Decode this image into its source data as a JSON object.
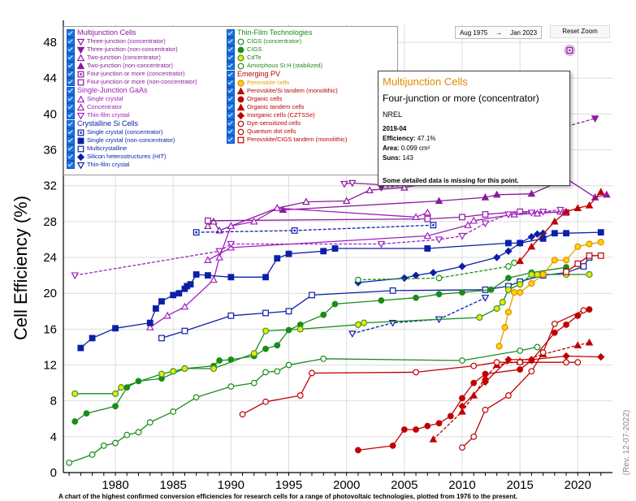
{
  "chart_data": {
    "type": "line",
    "title": "",
    "xlabel": "",
    "ylabel": "Cell Efficiency (%)",
    "xlim": [
      1975.5,
      2023
    ],
    "ylim": [
      0,
      50
    ],
    "x_ticks": [
      1980,
      1985,
      1990,
      1995,
      2000,
      2005,
      2010,
      2015,
      2020
    ],
    "y_ticks": [
      0,
      4,
      8,
      12,
      16,
      20,
      24,
      28,
      32,
      36,
      40,
      44,
      48
    ],
    "grid": true,
    "legend_position": "top-left",
    "caption": "A chart of the highest confirmed conversion efficiencies for research cells for a range of photovoltaic technologies, plotted from 1976 to the present.",
    "revision": "(Rev. 12-07-2022)",
    "controls": {
      "date_from": "Aug 1975",
      "date_arrow": "→",
      "date_to": "Jan 2023",
      "reset_label": "Reset Zoom"
    },
    "tooltip": {
      "group": "Multijunction Cells",
      "series": "Four-junction or more (concentrator)",
      "org": "NREL",
      "date": "2019-04",
      "efficiency_label": "Efficiency:",
      "efficiency": "47.1%",
      "area_label": "Area:",
      "area": "0.099 cm²",
      "suns_label": "Suns:",
      "suns": "143",
      "note": "Some detailed data is missing for this point."
    },
    "legend": {
      "col1": [
        {
          "group": "Multijunction Cells",
          "color": "#8b1a9e",
          "items": [
            {
              "label": "Three-junction (concentrator)",
              "marker": "tri-down-open",
              "color": "#8b1a9e"
            },
            {
              "label": "Three-junction (non-concentrator)",
              "marker": "tri-down",
              "color": "#8b1a9e"
            },
            {
              "label": "Two-junction (concentrator)",
              "marker": "tri-open",
              "color": "#8b1a9e"
            },
            {
              "label": "Two-junction (non-concentrator)",
              "marker": "tri",
              "color": "#8b1a9e"
            },
            {
              "label": "Four-junction or more (concentrator)",
              "marker": "square-dot",
              "color": "#8b1a9e"
            },
            {
              "label": "Four-junction or more (non-concentrator)",
              "marker": "square-open",
              "color": "#8b1a9e"
            }
          ]
        },
        {
          "group": "Single-Junction GaAs",
          "color": "#a020c0",
          "items": [
            {
              "label": "Single crystal",
              "marker": "tri-open",
              "color": "#a020c0"
            },
            {
              "label": "Concentrator",
              "marker": "tri-open",
              "color": "#a020c0"
            },
            {
              "label": "Thin-film crystal",
              "marker": "tri-down-open",
              "color": "#a020c0"
            }
          ]
        },
        {
          "group": "Crystalline Si Cells",
          "color": "#0a1fa8",
          "items": [
            {
              "label": "Single crystal (concentrator)",
              "marker": "square-dot",
              "color": "#0a1fa8"
            },
            {
              "label": "Single crystal (non-concentrator)",
              "marker": "square",
              "color": "#0a1fa8"
            },
            {
              "label": "Multicrystalline",
              "marker": "square-open",
              "color": "#0a1fa8"
            },
            {
              "label": "Silicon heterostructures (HIT)",
              "marker": "diamond",
              "color": "#0a1fa8"
            },
            {
              "label": "Thin-film crystal",
              "marker": "tri-down-open",
              "color": "#0a1fa8"
            }
          ]
        }
      ],
      "col2": [
        {
          "group": "Thin-Film Technologies",
          "color": "#1a8c1a",
          "items": [
            {
              "label": "CIGS (concentrator)",
              "marker": "circle-open",
              "color": "#1a8c1a"
            },
            {
              "label": "CIGS",
              "marker": "circle",
              "color": "#1a8c1a"
            },
            {
              "label": "CdTe",
              "marker": "circle-yellow",
              "color": "#1a8c1a"
            },
            {
              "label": "Amorphous Si:H (stabilized)",
              "marker": "circle-open",
              "color": "#1a8c1a"
            }
          ]
        },
        {
          "group": "Emerging PV",
          "color": "#c00000",
          "items": [
            {
              "label": "Perovskite cells",
              "marker": "circle-orange",
              "color": "#e0a000"
            },
            {
              "label": "Perovskite/Si tandem (monolithic)",
              "marker": "tri",
              "color": "#c00000"
            },
            {
              "label": "Organic cells",
              "marker": "circle",
              "color": "#c00000"
            },
            {
              "label": "Organic tandem cells",
              "marker": "tri",
              "color": "#c00000"
            },
            {
              "label": "Inorganic cells (CZTSSe)",
              "marker": "diamond",
              "color": "#c00000"
            },
            {
              "label": "Dye-sensitized cells",
              "marker": "circle-open",
              "color": "#c00000"
            },
            {
              "label": "Quantum dot cells",
              "marker": "circle-open",
              "color": "#c00000"
            },
            {
              "label": "Perovskite/CIGS tandem (monolithic)",
              "marker": "square-open",
              "color": "#c00000"
            }
          ]
        }
      ]
    },
    "series": [
      {
        "name": "Four-junction or more (concentrator)",
        "color": "#8b1a9e",
        "marker": "circle-open",
        "dash": "",
        "x": [
          2019.3
        ],
        "y": [
          47.1
        ]
      },
      {
        "name": "Three-junction (concentrator)",
        "color": "#8b1a9e",
        "marker": "tri-down-open",
        "dash": "",
        "x": [
          1999.8,
          2000.5,
          2003,
          2008.7
        ],
        "y": [
          32.2,
          32.3,
          32.1,
          32.6
        ]
      },
      {
        "name": "Three-junction (non-concentrator)",
        "color": "#8b1a9e",
        "marker": "tri-down",
        "dash": "4,2",
        "x": [
          2003,
          2008,
          2010.5,
          2013,
          2017,
          2021.5
        ],
        "y": [
          31.8,
          32.4,
          33.0,
          34.5,
          37.9,
          39.5
        ]
      },
      {
        "name": "Two-junction (concentrator)",
        "color": "#8b1a9e",
        "marker": "tri-open",
        "dash": "",
        "x": [
          1988,
          1988.5,
          1989,
          1990,
          1994,
          1996.5,
          2000,
          2002,
          2005,
          2008,
          2010,
          2012,
          2015
        ],
        "y": [
          27.5,
          28.0,
          27.0,
          27.5,
          29.5,
          30.2,
          30.3,
          31.5,
          31.8,
          32.5,
          32.6,
          32.5,
          33.0
        ]
      },
      {
        "name": "Two-junction (non-concentrator)",
        "color": "#8b1a9e",
        "marker": "tri",
        "dash": "",
        "x": [
          1994.5,
          2008,
          2012,
          2013,
          2016,
          2019,
          2021.5,
          2022.5
        ],
        "y": [
          29.3,
          30.3,
          30.7,
          31.0,
          31.1,
          32.8,
          30.7,
          31.0
        ]
      },
      {
        "name": "Four-junction or more (non-concentrator)",
        "color": "#8b1a9e",
        "marker": "square-open",
        "dash": "",
        "x": [
          1988,
          2007,
          2010,
          2012,
          2015,
          2019
        ],
        "y": [
          28.1,
          28.3,
          28.5,
          28.8,
          29.1,
          29.0
        ]
      },
      {
        "name": "GaAs Single crystal",
        "color": "#a020c0",
        "marker": "tri-open",
        "dash": "",
        "x": [
          1988,
          1990,
          2007,
          2010.5,
          2011,
          2014.5,
          2016.5,
          2018.5
        ],
        "y": [
          23.7,
          25.1,
          26.4,
          27.6,
          28.1,
          28.8,
          28.9,
          29.1
        ]
      },
      {
        "name": "GaAs Concentrator",
        "color": "#a020c0",
        "marker": "tri-open",
        "dash": "",
        "x": [
          1983,
          1984.5,
          1986,
          1988.5,
          1989,
          1990,
          1992,
          1994,
          2006,
          2007
        ],
        "y": [
          16.2,
          17.5,
          18.5,
          21.5,
          24,
          27.5,
          28,
          29.5,
          28.5,
          29.0
        ]
      },
      {
        "name": "GaAs Thin-film crystal",
        "color": "#a020c0",
        "marker": "tri-down-open",
        "dash": "4,2",
        "x": [
          1976.5,
          1989,
          1990,
          2003,
          2008,
          2010,
          2012,
          2014,
          2016,
          2017,
          2018.5
        ],
        "y": [
          22.0,
          24.7,
          25.5,
          25.5,
          26.0,
          26.4,
          27.8,
          28.8,
          29.0,
          29.1,
          29.3
        ]
      },
      {
        "name": "Single crystal (concentrator)",
        "color": "#0a1fa8",
        "marker": "square-dot",
        "dash": "4,2",
        "x": [
          1987,
          1995.5,
          2007.5
        ],
        "y": [
          26.8,
          27.0,
          27.6
        ]
      },
      {
        "name": "Single crystal (non-concentrator)",
        "color": "#0a1fa8",
        "marker": "square",
        "dash": "",
        "x": [
          1977,
          1978,
          1980,
          1983,
          1983.5,
          1984,
          1985,
          1985.5,
          1986,
          1986.2,
          1986.5,
          1987,
          1988,
          1990,
          1993,
          1994,
          1995,
          1998,
          1999,
          2007,
          2014,
          2015,
          2017,
          2018,
          2019,
          2022
        ],
        "y": [
          13.9,
          15.0,
          16.1,
          16.7,
          18.3,
          19.1,
          19.8,
          20.0,
          20.5,
          20.8,
          21.0,
          22.1,
          22.0,
          21.8,
          21.8,
          23.9,
          24.4,
          24.7,
          25.0,
          25.0,
          25.6,
          25.6,
          26.1,
          26.7,
          26.7,
          26.8
        ]
      },
      {
        "name": "Multicrystalline",
        "color": "#0a1fa8",
        "marker": "square-open",
        "dash": "",
        "x": [
          1984,
          1986,
          1990,
          1993,
          1995,
          1997,
          2004,
          2012,
          2014,
          2015,
          2017,
          2019,
          2020.5,
          2021
        ],
        "y": [
          15.0,
          15.8,
          17.5,
          17.8,
          18.0,
          19.8,
          20.3,
          20.4,
          20.8,
          21.3,
          22.0,
          22.3,
          23.0,
          24.0
        ]
      },
      {
        "name": "Silicon heterostructures (HIT)",
        "color": "#0a1fa8",
        "marker": "diamond",
        "dash": "",
        "x": [
          2001,
          2005,
          2006,
          2007.5,
          2010,
          2013,
          2014,
          2015,
          2016,
          2016.5,
          2017
        ],
        "y": [
          21.2,
          21.7,
          22.0,
          22.3,
          23.0,
          24.0,
          24.7,
          25.6,
          26.3,
          26.6,
          26.7
        ]
      },
      {
        "name": "Si Thin-film crystal",
        "color": "#0a1fa8",
        "marker": "tri-down-open",
        "dash": "4,2",
        "x": [
          2000.5,
          2004,
          2008,
          2012
        ],
        "y": [
          15.5,
          16.7,
          17.1,
          19.5
        ]
      },
      {
        "name": "CIGS (concentrator)",
        "color": "#1a8c1a",
        "marker": "circle-open",
        "dash": "4,2",
        "x": [
          2001,
          2008,
          2014,
          2014.5
        ],
        "y": [
          21.5,
          21.7,
          23.0,
          23.4
        ]
      },
      {
        "name": "CIGS",
        "color": "#1a8c1a",
        "marker": "circle",
        "dash": "",
        "x": [
          1976.5,
          1977.5,
          1980,
          1981,
          1982,
          1984,
          1986,
          1988.5,
          1989,
          1990,
          1992,
          1993,
          1994,
          1995,
          1996,
          1998,
          1999,
          2003,
          2006,
          2008,
          2010,
          2012.5,
          2014,
          2016,
          2019
        ],
        "y": [
          5.7,
          6.6,
          7.4,
          9.5,
          10.2,
          10.5,
          11.6,
          11.9,
          12.5,
          12.6,
          13.0,
          13.8,
          14.2,
          15.9,
          16.5,
          17.6,
          18.8,
          19.2,
          19.5,
          19.9,
          20.1,
          20.4,
          21.7,
          22.3,
          22.9
        ]
      },
      {
        "name": "CdTe",
        "color": "#1a8c1a",
        "marker": "circle-yellow",
        "dash": "",
        "x": [
          1976.5,
          1980,
          1980.5,
          1984,
          1985,
          1986,
          1988.5,
          1992,
          1993,
          1996,
          2001,
          2001.5,
          2011.5,
          2013,
          2013.5,
          2014,
          2015,
          2016,
          2016.5,
          2019,
          2021
        ],
        "y": [
          8.8,
          8.8,
          9.5,
          11.0,
          11.3,
          11.6,
          11.6,
          13.3,
          15.8,
          16.0,
          16.5,
          16.7,
          17.3,
          18.3,
          19.0,
          20.4,
          21.0,
          22.1,
          22.1,
          22.1,
          22.1
        ]
      },
      {
        "name": "Amorphous Si:H (stabilized)",
        "color": "#1a8c1a",
        "marker": "circle-open",
        "dash": "",
        "x": [
          1976,
          1978,
          1979,
          1980,
          1981,
          1982,
          1983,
          1985,
          1987,
          1990,
          1992,
          1993,
          1994,
          1995,
          1998,
          2010,
          2015,
          2016.5
        ],
        "y": [
          1.1,
          2.0,
          3.0,
          3.3,
          4.2,
          4.5,
          5.6,
          6.8,
          8.4,
          9.6,
          10.0,
          11.2,
          11.3,
          12.0,
          12.7,
          12.5,
          13.6,
          14.0
        ]
      },
      {
        "name": "Perovskite cells",
        "color": "#e0a000",
        "marker": "circle-orange",
        "dash": "",
        "x": [
          2013.2,
          2013.7,
          2014,
          2014.5,
          2015,
          2016,
          2017,
          2018,
          2019,
          2020,
          2021,
          2022
        ],
        "y": [
          14.1,
          16.2,
          17.9,
          20.1,
          20.1,
          21.1,
          22.1,
          23.7,
          23.7,
          25.2,
          25.5,
          25.7
        ]
      },
      {
        "name": "Perovskite/Si tandem (monolithic)",
        "color": "#c00000",
        "marker": "tri",
        "dash": "",
        "x": [
          2015,
          2016,
          2018,
          2019,
          2020,
          2021,
          2022
        ],
        "y": [
          23.6,
          25.2,
          28.0,
          29.1,
          29.5,
          29.8,
          31.3
        ]
      },
      {
        "name": "Organic cells",
        "color": "#c00000",
        "marker": "circle",
        "dash": "",
        "x": [
          2001,
          2004,
          2005,
          2006,
          2007,
          2008,
          2009,
          2010,
          2011,
          2012,
          2015,
          2016,
          2018,
          2019,
          2020,
          2021
        ],
        "y": [
          2.5,
          3.0,
          4.8,
          4.8,
          5.2,
          5.5,
          6.3,
          8.3,
          10.0,
          11.0,
          11.5,
          12.5,
          15.6,
          16.5,
          17.5,
          18.2
        ]
      },
      {
        "name": "Organic tandem cells",
        "color": "#c00000",
        "marker": "tri",
        "dash": "4,2",
        "x": [
          2007.5,
          2010,
          2011,
          2012,
          2013,
          2015,
          2017,
          2020,
          2021
        ],
        "y": [
          3.7,
          6.8,
          8.6,
          10.6,
          12.0,
          12.4,
          13.2,
          14.2,
          14.5
        ]
      },
      {
        "name": "Inorganic cells (CZTSSe)",
        "color": "#c00000",
        "marker": "diamond",
        "dash": "",
        "x": [
          2010,
          2012,
          2014,
          2016,
          2019,
          2022
        ],
        "y": [
          7.4,
          10.1,
          12.6,
          12.6,
          13.0,
          12.9
        ]
      },
      {
        "name": "Dye-sensitized cells",
        "color": "#c00000",
        "marker": "circle-open",
        "dash": "",
        "x": [
          1991,
          1993,
          1996,
          1997,
          2006,
          2011,
          2013,
          2015,
          2019,
          2020
        ],
        "y": [
          6.5,
          7.9,
          8.6,
          11.1,
          11.2,
          11.9,
          12.3,
          12.3,
          12.3,
          12.3
        ]
      },
      {
        "name": "Quantum dot cells",
        "color": "#c00000",
        "marker": "circle-open",
        "dash": "",
        "x": [
          2010,
          2011,
          2012,
          2014,
          2016,
          2017,
          2018,
          2020.5
        ],
        "y": [
          2.8,
          4.0,
          7.0,
          8.6,
          11.3,
          13.4,
          16.6,
          18.1
        ]
      },
      {
        "name": "Perovskite/CIGS tandem (monolithic)",
        "color": "#c00000",
        "marker": "square-open",
        "dash": "",
        "x": [
          2019,
          2020,
          2021,
          2022
        ],
        "y": [
          22.4,
          23.3,
          24.2,
          24.2
        ]
      }
    ]
  }
}
